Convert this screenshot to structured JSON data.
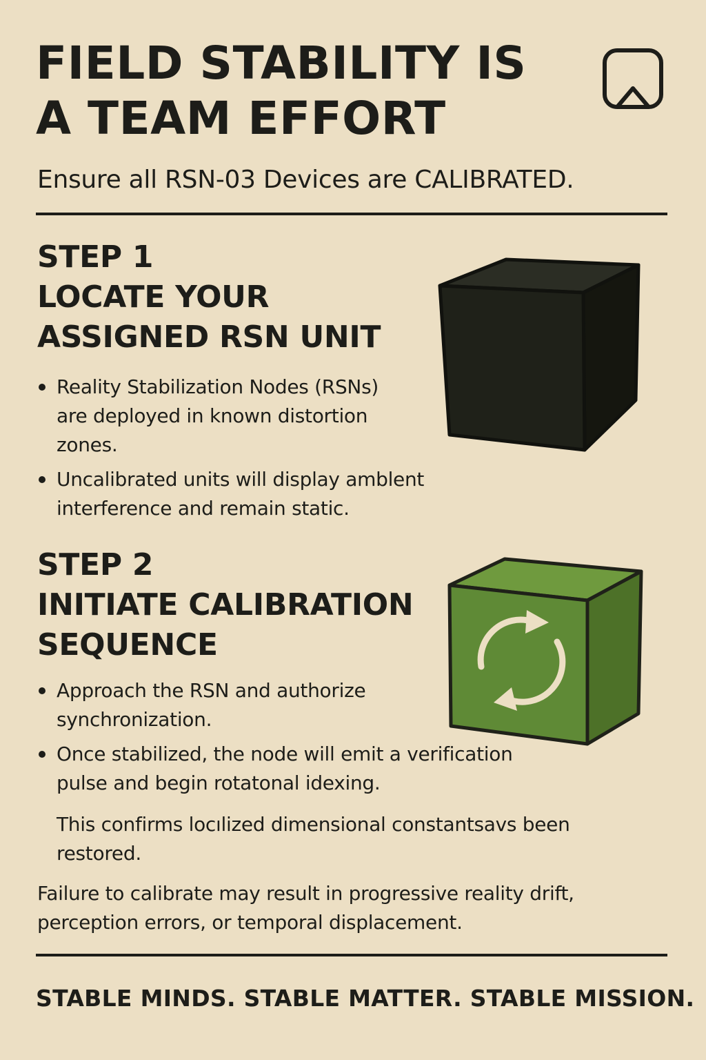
{
  "header": {
    "title_lines": [
      "FIELD STABILITY IS",
      "A TEAM EFFORT"
    ],
    "subtitle": "Ensure all RSN-03 Devices are CALIBRATED.",
    "logo_icon": "rounded-square-triangle-icon"
  },
  "step1": {
    "label": "STEP 1",
    "heading_lines": [
      "LOCATE YOUR",
      "ASSIGNED RSN UNIT"
    ],
    "bullets": [
      "Reality Stabilization Nodes (RSNs) are deployed in known distortion zones.",
      "Uncalibrated units will display amblent interference and remain static."
    ],
    "illustration": "black-cube-icon"
  },
  "step2": {
    "label": "STEP 2",
    "heading_lines": [
      "INITIATE CALIBRATION",
      "SEQUENCE"
    ],
    "bullets": [
      "Approach the RSN and authorize synchronization.",
      "Once stabilized, the node will emit a verification pulse and begin rotatonal idexing."
    ],
    "note": "This confirms locılized dimensional constantsavs been restored.",
    "illustration": "green-cube-refresh-icon"
  },
  "warning": "Failure to calibrate may result in progressive reality drift, perception errors, or temporal displacement.",
  "footer": "STABLE MINDS. STABLE MATTER. STABLE MISSION.",
  "colors": {
    "background": "#ecdfc4",
    "ink": "#1d1d19",
    "cube_dark": "#1f2119",
    "cube_green": "#5f8a36",
    "arrow": "#ecdfc4"
  }
}
